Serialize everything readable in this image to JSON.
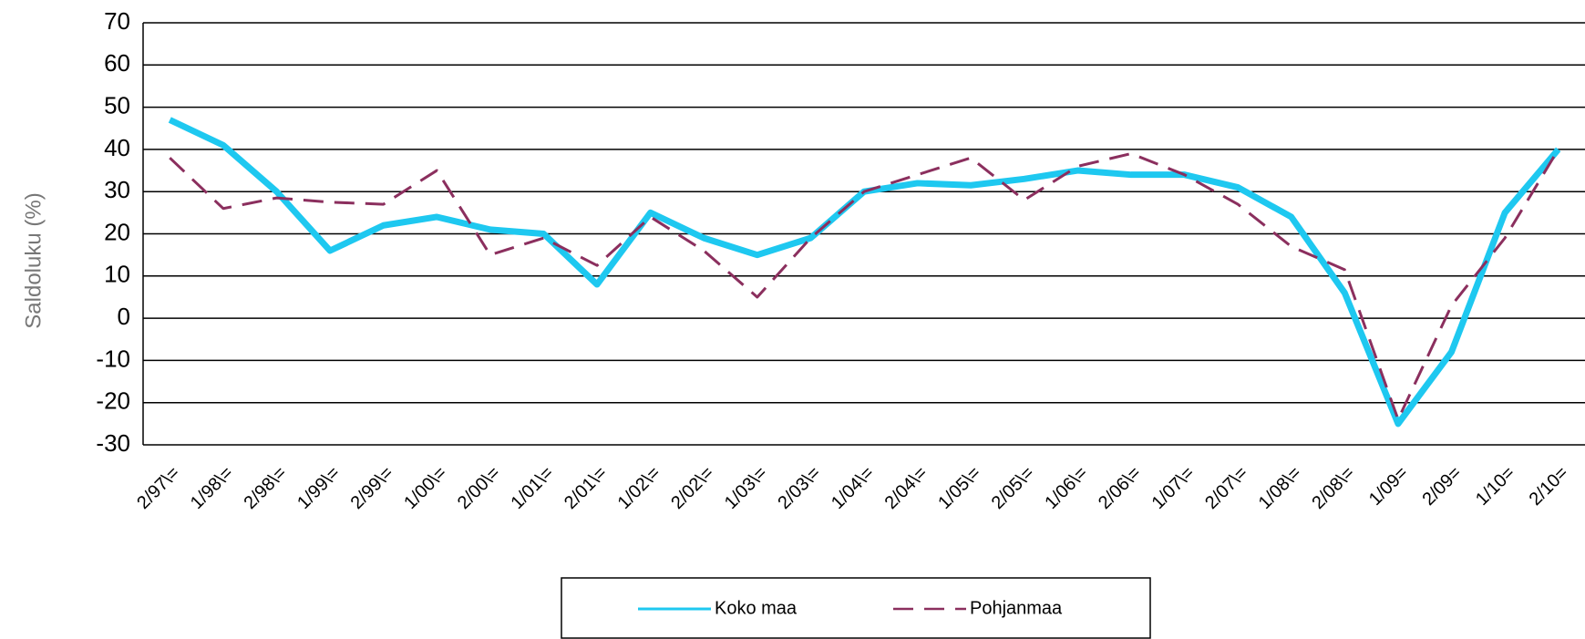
{
  "chart_data": {
    "type": "line",
    "y_label": "Saldoluku (%)",
    "categories": [
      "2/97\\=",
      "1/98\\=",
      "2/98\\=",
      "1/99\\=",
      "2/99\\=",
      "1/00\\=",
      "2/00\\=",
      "1/01\\=",
      "2/01\\=",
      "1/02\\=",
      "2/02\\=",
      "1/03\\=",
      "2/03\\=",
      "1/04\\=",
      "2/04\\=",
      "1/05\\=",
      "2/05\\=",
      "1/06\\=",
      "2/06\\=",
      "1/07\\=",
      "2/07\\=",
      "1/08\\=",
      "2/08\\=",
      "1/09=",
      "2/09=",
      "1/10=",
      "2/10="
    ],
    "series": [
      {
        "name": "Koko maa",
        "color": "#1ec8f0",
        "dash": false,
        "values": [
          47,
          41,
          30,
          16,
          22,
          24,
          21,
          20,
          8,
          25,
          19,
          15,
          19,
          30,
          32,
          31.5,
          33,
          35,
          34,
          34,
          31,
          24,
          6,
          -25,
          -8,
          25,
          40
        ]
      },
      {
        "name": "Pohjanmaa",
        "color": "#8b2f5e",
        "dash": true,
        "values": [
          38,
          26,
          28.5,
          27.5,
          27,
          35,
          15,
          19,
          12.5,
          24,
          16,
          5,
          19,
          30,
          34,
          38,
          28,
          36,
          39,
          34,
          27,
          17,
          11.5,
          -24,
          3,
          19,
          40
        ]
      }
    ],
    "ylim": [
      -30,
      70
    ],
    "yticks": [
      -30,
      -20,
      -10,
      0,
      10,
      20,
      30,
      40,
      50,
      60,
      70
    ],
    "grid": true
  }
}
